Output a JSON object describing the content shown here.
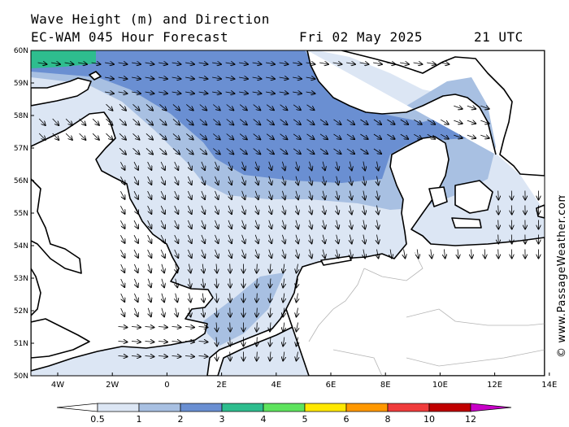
{
  "header": {
    "title_line1": "Wave Height (m) and Direction",
    "title_line2": "EC-WAM 045 Hour Forecast",
    "date": "Fri 02 May 2025",
    "time": "21 UTC"
  },
  "axes": {
    "lat_labels": [
      "60N",
      "59N",
      "58N",
      "57N",
      "56N",
      "55N",
      "54N",
      "53N",
      "52N",
      "51N",
      "50N"
    ],
    "lon_labels": [
      "4W",
      "2W",
      "0",
      "2E",
      "4E",
      "6E",
      "8E",
      "10E",
      "12E",
      "14E"
    ]
  },
  "legend": {
    "labels": [
      "0.5",
      "1",
      "2",
      "3",
      "4",
      "5",
      "6",
      "8",
      "10",
      "12"
    ],
    "colors": [
      "#dce6f4",
      "#a8c0e2",
      "#6a8fd2",
      "#2ebd8e",
      "#5ee35e",
      "#ffe800",
      "#ff9800",
      "#f03c3c",
      "#c00000",
      "#c800c8"
    ],
    "overflow_low_color": "#ffffff",
    "overflow_high_color": "#c800c8"
  },
  "credit": "© www.PassageWeather.com",
  "colors": {
    "sea_light": "#dce6f4",
    "sea_mid": "#a8c0e2",
    "sea_dark": "#6a8fd2",
    "sea_teal": "#2ebd8e",
    "land": "#ffffff",
    "coast": "#000000",
    "border": "#b4b4b4"
  },
  "field": {
    "wave_direction": "northerly swell turning to north-west in the southern bight",
    "wave_height_max_band": "3-4 m (far north-west)"
  }
}
